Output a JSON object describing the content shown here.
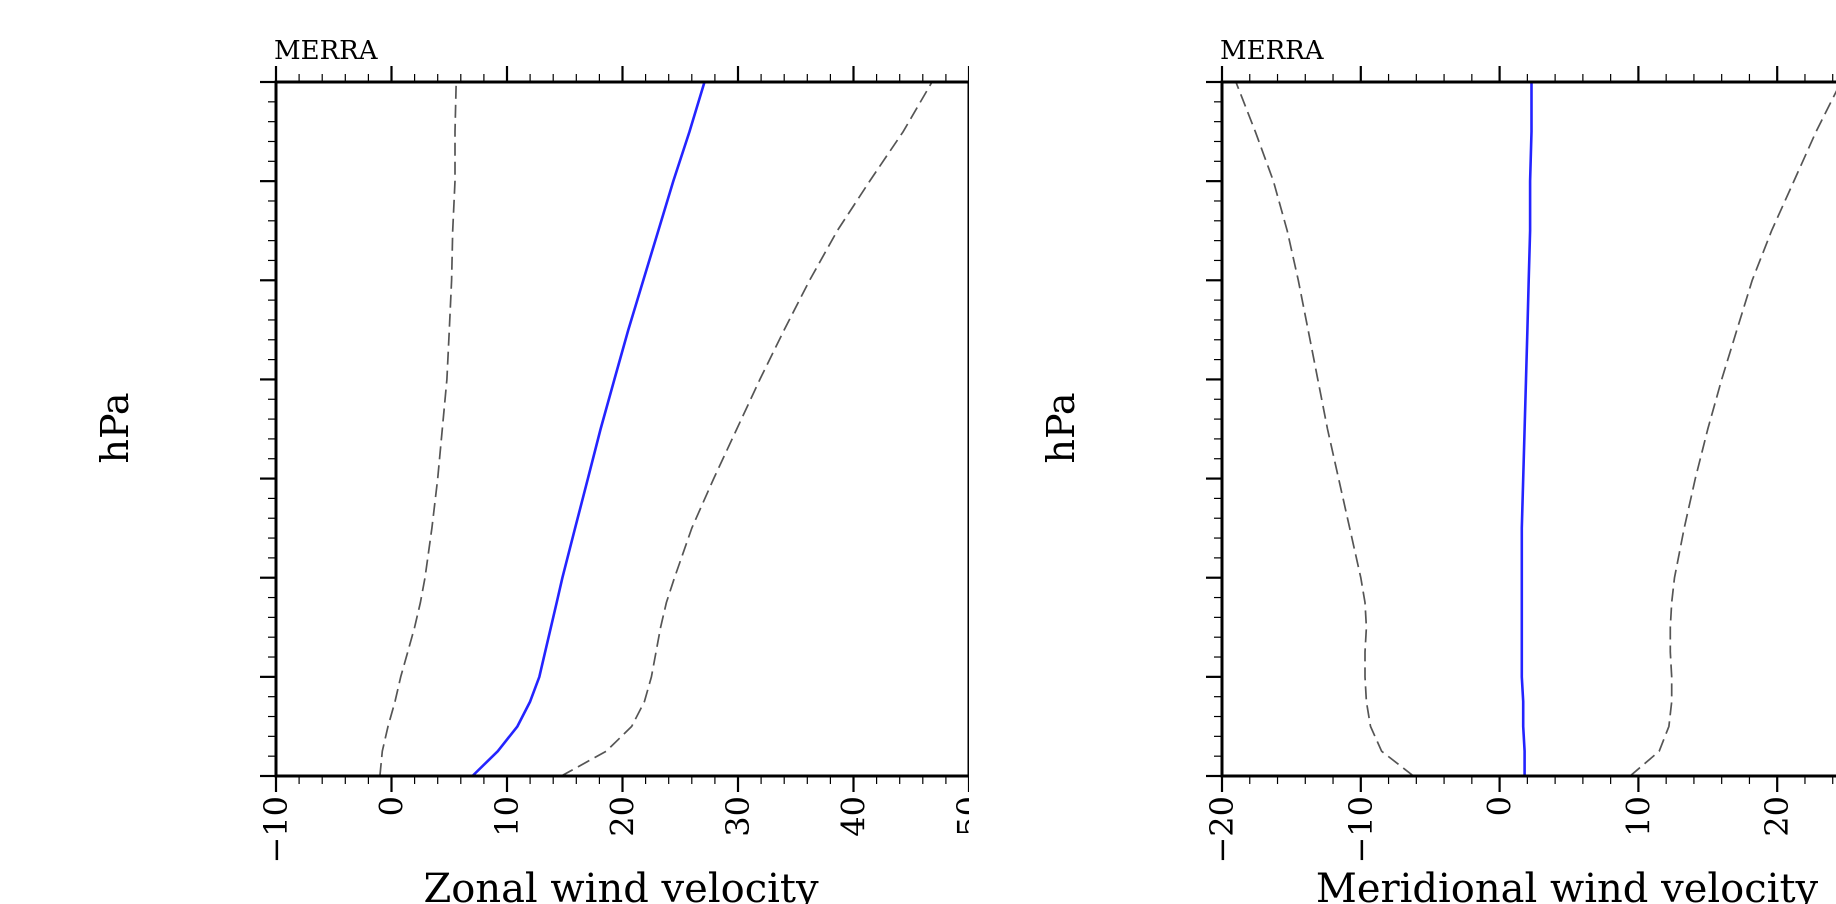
{
  "chart_data": [
    {
      "type": "line",
      "title": "MERRA",
      "xlabel": "Zonal wind velocity",
      "ylabel": "hPa",
      "xlim": [
        -10,
        50
      ],
      "ylim": [
        300,
        1000
      ],
      "y_inverted": true,
      "grid": false,
      "legend": "none",
      "x_ticks": [
        "−10",
        "0",
        "10",
        "20",
        "30",
        "40",
        "50"
      ],
      "y_ticks": [
        "300",
        "400",
        "500",
        "600",
        "700",
        "800",
        "900",
        "1000"
      ],
      "y_levels": [
        1000,
        975,
        950,
        925,
        900,
        875,
        850,
        825,
        800,
        750,
        700,
        650,
        600,
        550,
        500,
        450,
        400,
        350,
        300
      ],
      "series": [
        {
          "style": "solid",
          "color": "#2424ff",
          "values": [
            7.0,
            9.2,
            10.9,
            12.0,
            12.8,
            13.3,
            13.8,
            14.3,
            14.8,
            15.9,
            17.0,
            18.1,
            19.3,
            20.5,
            21.8,
            23.1,
            24.4,
            25.8,
            27.1
          ]
        },
        {
          "style": "dashed",
          "color": "#555555",
          "values": [
            -1.0,
            -0.8,
            -0.3,
            0.3,
            0.8,
            1.4,
            2.0,
            2.5,
            2.9,
            3.5,
            4.0,
            4.4,
            4.8,
            5.0,
            5.2,
            5.3,
            5.5,
            5.5,
            5.6
          ]
        },
        {
          "style": "dashed",
          "color": "#555555",
          "values": [
            14.7,
            18.6,
            20.8,
            21.9,
            22.5,
            22.9,
            23.3,
            23.8,
            24.5,
            26.0,
            27.9,
            29.9,
            31.9,
            34.0,
            36.2,
            38.6,
            41.4,
            44.3,
            46.8
          ]
        }
      ]
    },
    {
      "type": "line",
      "title": "MERRA",
      "xlabel": "Meridional wind velocity",
      "ylabel": "hPa",
      "xlim": [
        -20,
        30
      ],
      "ylim": [
        300,
        1000
      ],
      "y_inverted": true,
      "grid": false,
      "legend": "none",
      "x_ticks": [
        "−20",
        "−10",
        "0",
        "10",
        "20"
      ],
      "y_ticks": [
        "300",
        "400",
        "500",
        "600",
        "700",
        "800",
        "900",
        "1000"
      ],
      "y_levels": [
        1000,
        975,
        950,
        925,
        900,
        875,
        850,
        825,
        800,
        750,
        700,
        650,
        600,
        550,
        500,
        450,
        400,
        350,
        300
      ],
      "series": [
        {
          "style": "solid",
          "color": "#2424ff",
          "values": [
            1.8,
            1.8,
            1.7,
            1.7,
            1.6,
            1.6,
            1.6,
            1.6,
            1.6,
            1.6,
            1.7,
            1.8,
            1.9,
            2.0,
            2.1,
            2.2,
            2.2,
            2.3,
            2.3
          ]
        },
        {
          "style": "dashed",
          "color": "#555555",
          "values": [
            -6.2,
            -8.5,
            -9.3,
            -9.6,
            -9.7,
            -9.7,
            -9.6,
            -9.7,
            -10.0,
            -10.8,
            -11.6,
            -12.4,
            -13.1,
            -13.8,
            -14.5,
            -15.3,
            -16.3,
            -17.6,
            -19.0
          ]
        },
        {
          "style": "dashed",
          "color": "#555555",
          "values": [
            9.4,
            11.5,
            12.2,
            12.4,
            12.4,
            12.3,
            12.3,
            12.4,
            12.6,
            13.3,
            14.1,
            15.0,
            16.0,
            17.1,
            18.2,
            19.6,
            21.2,
            22.8,
            24.6
          ]
        }
      ]
    }
  ]
}
